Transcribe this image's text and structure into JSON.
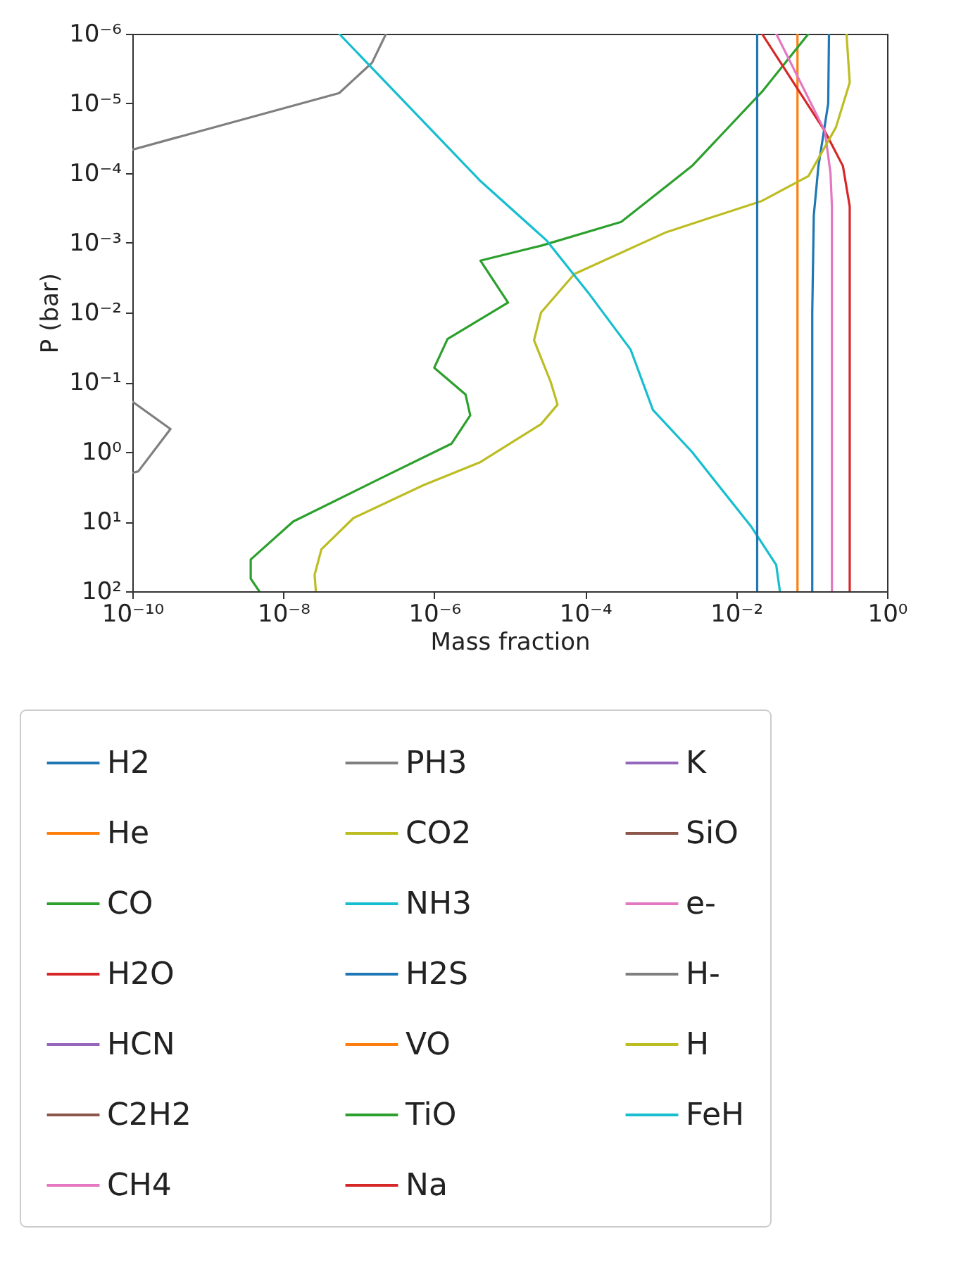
{
  "chart_data": {
    "type": "line",
    "xlabel": "Mass fraction",
    "ylabel": "P (bar)",
    "log": "xy",
    "grid": false,
    "legend": "bottom",
    "marker": "none",
    "line_style": "solid",
    "xlim": [
      1e-10,
      1
    ],
    "ylim": [
      100,
      1e-06
    ],
    "xticks": [
      {
        "value": 1e-10,
        "label": "10⁻¹⁰"
      },
      {
        "value": 1e-08,
        "label": "10⁻⁸"
      },
      {
        "value": 1e-06,
        "label": "10⁻⁶"
      },
      {
        "value": 0.0001,
        "label": "10⁻⁴"
      },
      {
        "value": 0.01,
        "label": "10⁻²"
      },
      {
        "value": 1,
        "label": "10⁰"
      }
    ],
    "yticks": [
      {
        "value": 1e-06,
        "label": "10⁻⁶"
      },
      {
        "value": 1e-05,
        "label": "10⁻⁵"
      },
      {
        "value": 0.0001,
        "label": "10⁻⁴"
      },
      {
        "value": 0.001,
        "label": "10⁻³"
      },
      {
        "value": 0.01,
        "label": "10⁻²"
      },
      {
        "value": 0.1,
        "label": "10⁻¹"
      },
      {
        "value": 1,
        "label": "10⁰"
      },
      {
        "value": 10,
        "label": "10¹"
      },
      {
        "value": 100,
        "label": "10²"
      }
    ],
    "series": [
      {
        "name": "H2",
        "color": "#1f77b4",
        "x": [
          0.17,
          0.166,
          0.123,
          0.107,
          0.102,
          0.102
        ],
        "values": [
          1e-06,
          1e-05,
          8e-05,
          0.0004,
          0.01,
          100
        ]
      },
      {
        "name": "He",
        "color": "#ff7f0e",
        "x": [
          0.065,
          0.065
        ],
        "values": [
          1e-06,
          100
        ]
      },
      {
        "name": "CO",
        "color": "#2ca02c",
        "x": [
          0.091,
          0.022,
          0.0026,
          0.0003,
          2.6e-05,
          4.1e-06,
          9.5e-06,
          1.5e-06,
          1e-06,
          2.6e-06,
          3e-06,
          1.7e-06,
          1.8e-07,
          1.35e-08,
          3.7e-09,
          3.7e-09,
          4.8e-09
        ],
        "values": [
          1e-06,
          6.8e-06,
          7.9e-05,
          0.0005,
          0.0011,
          0.0018,
          0.0072,
          0.024,
          0.062,
          0.15,
          0.3,
          0.76,
          2.5,
          10,
          35,
          66,
          100
        ]
      },
      {
        "name": "H2O",
        "color": "#d62728",
        "x": [
          0.022,
          0.15,
          0.26,
          0.32,
          0.32
        ],
        "values": [
          1e-06,
          2.5e-05,
          7.9e-05,
          0.0003,
          100
        ]
      },
      {
        "name": "HCN",
        "color": "#9467bd"
      },
      {
        "name": "C2H2",
        "color": "#8c564b"
      },
      {
        "name": "CH4",
        "color": "#e377c2",
        "x": [
          0.034,
          0.15,
          0.178,
          0.186,
          0.186
        ],
        "values": [
          1e-06,
          2.5e-05,
          0.0001,
          0.0003,
          100
        ]
      },
      {
        "name": "PH3",
        "color": "#7f7f7f",
        "x": [
          1e-10,
          5.5e-08,
          1.5e-07,
          2.3e-07
        ],
        "values": [
          4.6e-05,
          7.1e-06,
          2.6e-06,
          1e-06
        ]
      },
      {
        "name": "CO2",
        "color": "#bcbd22",
        "x": [
          0.29,
          0.32,
          0.21,
          0.091,
          0.022,
          0.0012,
          7.2e-05,
          2.6e-05,
          2.1e-05,
          3.5e-05,
          4.3e-05,
          2.6e-05,
          4.1e-06,
          7.2e-07,
          8.5e-08,
          3.2e-08,
          2.6e-08,
          2.7e-08
        ],
        "values": [
          1e-06,
          5e-06,
          2.2e-05,
          0.00011,
          0.00025,
          0.0007,
          0.0028,
          0.01,
          0.025,
          0.1,
          0.21,
          0.4,
          1.4,
          3,
          8.9,
          25,
          58,
          100
        ]
      },
      {
        "name": "NH3",
        "color": "#17becf",
        "x": [
          5.5e-08,
          4.1e-06,
          3.1e-05,
          0.00011,
          0.0004,
          0.00079,
          0.0026,
          0.016,
          0.034,
          0.038
        ],
        "values": [
          1e-06,
          0.00013,
          0.00093,
          0.0052,
          0.034,
          0.25,
          1,
          12,
          42,
          100
        ]
      },
      {
        "name": "H2S",
        "color": "#1f77b4",
        "x": [
          0.019,
          0.019
        ],
        "values": [
          1e-06,
          100
        ]
      },
      {
        "name": "VO",
        "color": "#ff7f0e"
      },
      {
        "name": "TiO",
        "color": "#2ca02c"
      },
      {
        "name": "Na",
        "color": "#d62728"
      },
      {
        "name": "K",
        "color": "#9467bd"
      },
      {
        "name": "SiO",
        "color": "#8c564b"
      },
      {
        "name": "e-",
        "color": "#e377c2"
      },
      {
        "name": "H-",
        "color": "#7f7f7f",
        "x": [
          1e-10,
          3.2e-10,
          1.2e-10,
          1e-10
        ],
        "values": [
          0.19,
          0.47,
          1.9,
          2
        ]
      },
      {
        "name": "H",
        "color": "#bcbd22"
      },
      {
        "name": "FeH",
        "color": "#17becf"
      }
    ]
  }
}
